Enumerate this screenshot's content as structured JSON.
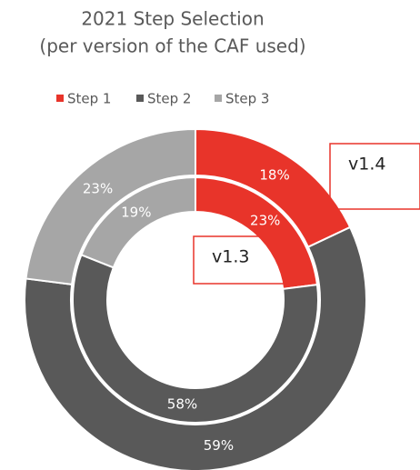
{
  "chart_data": {
    "type": "donut",
    "title": "2021 Step Selection",
    "subtitle": "(per version of the CAF used)",
    "categories": [
      "Step 1",
      "Step 2",
      "Step 3"
    ],
    "colors": [
      "#e8342a",
      "#595959",
      "#a6a6a6"
    ],
    "legend": "top",
    "series": [
      {
        "name": "v1.4",
        "values": [
          18,
          59,
          23
        ],
        "value_labels": [
          "18%",
          "59%",
          "23%"
        ]
      },
      {
        "name": "v1.3",
        "values": [
          23,
          58,
          19
        ],
        "value_labels": [
          "23%",
          "58%",
          "19%"
        ]
      }
    ]
  }
}
